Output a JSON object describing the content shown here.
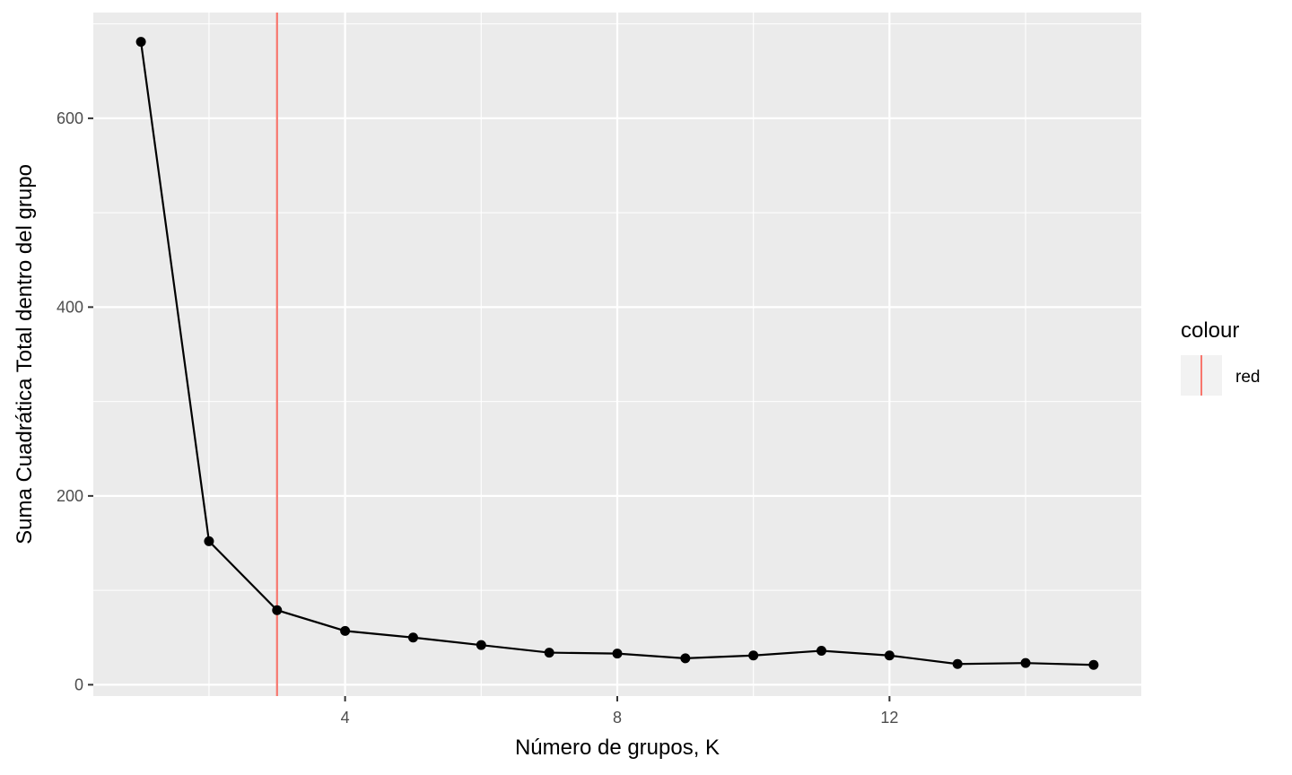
{
  "chart_data": {
    "type": "line",
    "title": "",
    "xlabel": "Número de grupos, K",
    "ylabel": "Suma Cuadrática Total dentro del grupo",
    "xlim": [
      0.3,
      15.7
    ],
    "ylim": [
      -12,
      712
    ],
    "x_ticks": [
      4,
      8,
      12
    ],
    "x_tick_labels": [
      "4",
      "8",
      "12"
    ],
    "y_ticks": [
      0,
      200,
      400,
      600
    ],
    "y_tick_labels": [
      "0",
      "200",
      "400",
      "600"
    ],
    "grid": true,
    "series": [
      {
        "color": "#000000",
        "x": [
          1,
          2,
          3,
          4,
          5,
          6,
          7,
          8,
          9,
          10,
          11,
          12,
          13,
          14,
          15
        ],
        "y": [
          681,
          152,
          79,
          57,
          50,
          42,
          34,
          33,
          28,
          31,
          36,
          31,
          22,
          23,
          21
        ]
      }
    ],
    "vline": {
      "x": 3,
      "color": "#F8766D"
    },
    "legend": {
      "title": "colour",
      "entries": [
        "red"
      ],
      "position": "right"
    }
  }
}
